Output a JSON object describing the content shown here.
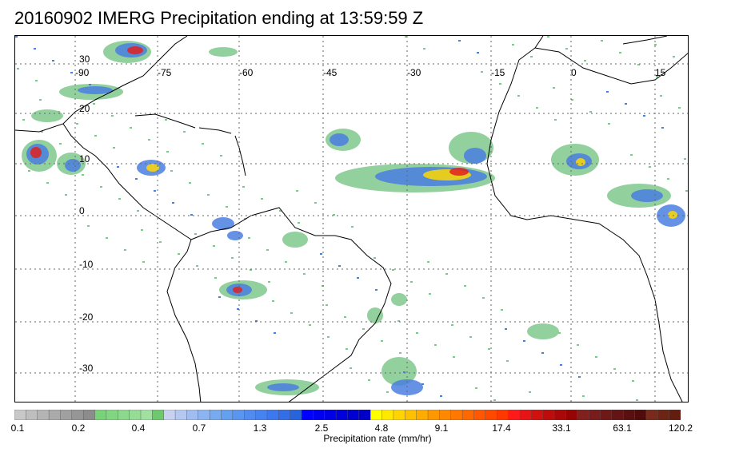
{
  "title": "20160902 IMERG Precipitation ending at 13:59:59 Z",
  "map": {
    "lon_labels": [
      "-90",
      "-75",
      "-60",
      "-45",
      "-30",
      "-15",
      "0",
      "15"
    ],
    "lat_labels": [
      "30",
      "20",
      "10",
      "0",
      "-10",
      "-20",
      "-30"
    ],
    "colors": {
      "land_outline": "#000000",
      "grid": "#666666",
      "light_rain": "#7fc88c",
      "moderate": "#4a7fe0",
      "heavy": "#1010d0",
      "very_heavy": "#ffd700",
      "extreme": "#e02020"
    }
  },
  "colorbar": {
    "title": "Precipitation rate (mm/hr)",
    "labels": [
      "0.1",
      "0.2",
      "0.4",
      "0.7",
      "1.3",
      "2.5",
      "4.8",
      "9.1",
      "17.4",
      "33.1",
      "63.1",
      "120.2"
    ],
    "colors": [
      "#c8c8c8",
      "#bebebe",
      "#b4b4b4",
      "#aaaaaa",
      "#a0a0a0",
      "#969696",
      "#8c8c8c",
      "#78d278",
      "#82d682",
      "#8cd88c",
      "#96dc96",
      "#a0e0a0",
      "#6ec86e",
      "#c8d2f0",
      "#b4c8f0",
      "#a0bcf0",
      "#8cb4f0",
      "#78aaf0",
      "#64a0f0",
      "#5a96f0",
      "#508cf0",
      "#4682f0",
      "#3c78f0",
      "#326ee6",
      "#2864dc",
      "#0000ff",
      "#0000f0",
      "#0000e6",
      "#0000dc",
      "#0000d2",
      "#0000c8",
      "#ffff00",
      "#ffe800",
      "#ffd400",
      "#ffc000",
      "#ffac00",
      "#ff9800",
      "#ff8800",
      "#ff7800",
      "#ff6800",
      "#ff5800",
      "#ff4800",
      "#ff3800",
      "#ff1a1a",
      "#e61414",
      "#d21010",
      "#be0c0c",
      "#aa0808",
      "#960404",
      "#822020",
      "#781c1c",
      "#6e1818",
      "#641414",
      "#5a1010",
      "#500c0c",
      "#7a2a1a",
      "#6e2414",
      "#641e10"
    ]
  }
}
